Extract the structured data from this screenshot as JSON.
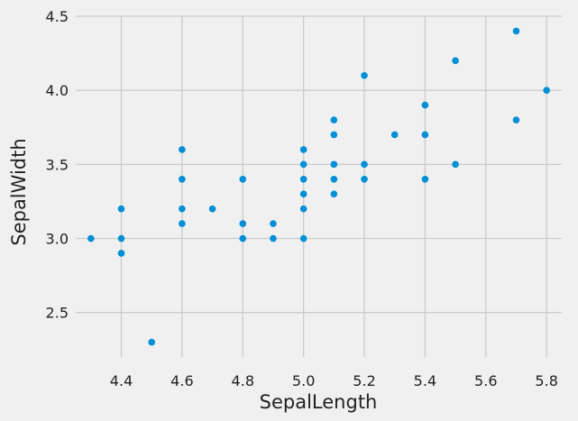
{
  "chart_data": {
    "type": "scatter",
    "title": "",
    "xlabel": "SepalLength",
    "ylabel": "SepalWidth",
    "xlim": [
      4.25,
      5.85
    ],
    "ylim": [
      2.2,
      4.5
    ],
    "xticks": [
      4.4,
      4.6,
      4.8,
      5.0,
      5.2,
      5.4,
      5.6,
      5.8
    ],
    "xtick_labels": [
      "4.4",
      "4.6",
      "4.8",
      "5.0",
      "5.2",
      "5.4",
      "5.6",
      "5.8"
    ],
    "yticks": [
      2.5,
      3.0,
      3.5,
      4.0,
      4.5
    ],
    "ytick_labels": [
      "2.5",
      "3.0",
      "3.5",
      "4.0",
      "4.5"
    ],
    "grid": true,
    "marker_color": "#008fd5",
    "background_color": "#f0f0f0",
    "grid_color": "#cbcbcb",
    "points": [
      {
        "x": 4.3,
        "y": 3.0
      },
      {
        "x": 4.4,
        "y": 3.2
      },
      {
        "x": 4.4,
        "y": 3.0
      },
      {
        "x": 4.4,
        "y": 2.9
      },
      {
        "x": 4.5,
        "y": 2.3
      },
      {
        "x": 4.6,
        "y": 3.6
      },
      {
        "x": 4.6,
        "y": 3.4
      },
      {
        "x": 4.6,
        "y": 3.2
      },
      {
        "x": 4.6,
        "y": 3.1
      },
      {
        "x": 4.7,
        "y": 3.2
      },
      {
        "x": 4.8,
        "y": 3.4
      },
      {
        "x": 4.8,
        "y": 3.1
      },
      {
        "x": 4.8,
        "y": 3.0
      },
      {
        "x": 4.9,
        "y": 3.1
      },
      {
        "x": 4.9,
        "y": 3.0
      },
      {
        "x": 5.0,
        "y": 3.6
      },
      {
        "x": 5.0,
        "y": 3.5
      },
      {
        "x": 5.0,
        "y": 3.4
      },
      {
        "x": 5.0,
        "y": 3.3
      },
      {
        "x": 5.0,
        "y": 3.2
      },
      {
        "x": 5.0,
        "y": 3.0
      },
      {
        "x": 5.1,
        "y": 3.8
      },
      {
        "x": 5.1,
        "y": 3.7
      },
      {
        "x": 5.1,
        "y": 3.5
      },
      {
        "x": 5.1,
        "y": 3.4
      },
      {
        "x": 5.1,
        "y": 3.3
      },
      {
        "x": 5.2,
        "y": 4.1
      },
      {
        "x": 5.2,
        "y": 3.5
      },
      {
        "x": 5.2,
        "y": 3.4
      },
      {
        "x": 5.3,
        "y": 3.7
      },
      {
        "x": 5.4,
        "y": 3.9
      },
      {
        "x": 5.4,
        "y": 3.7
      },
      {
        "x": 5.4,
        "y": 3.4
      },
      {
        "x": 5.5,
        "y": 4.2
      },
      {
        "x": 5.5,
        "y": 3.5
      },
      {
        "x": 5.7,
        "y": 4.4
      },
      {
        "x": 5.7,
        "y": 3.8
      },
      {
        "x": 5.8,
        "y": 4.0
      }
    ]
  }
}
